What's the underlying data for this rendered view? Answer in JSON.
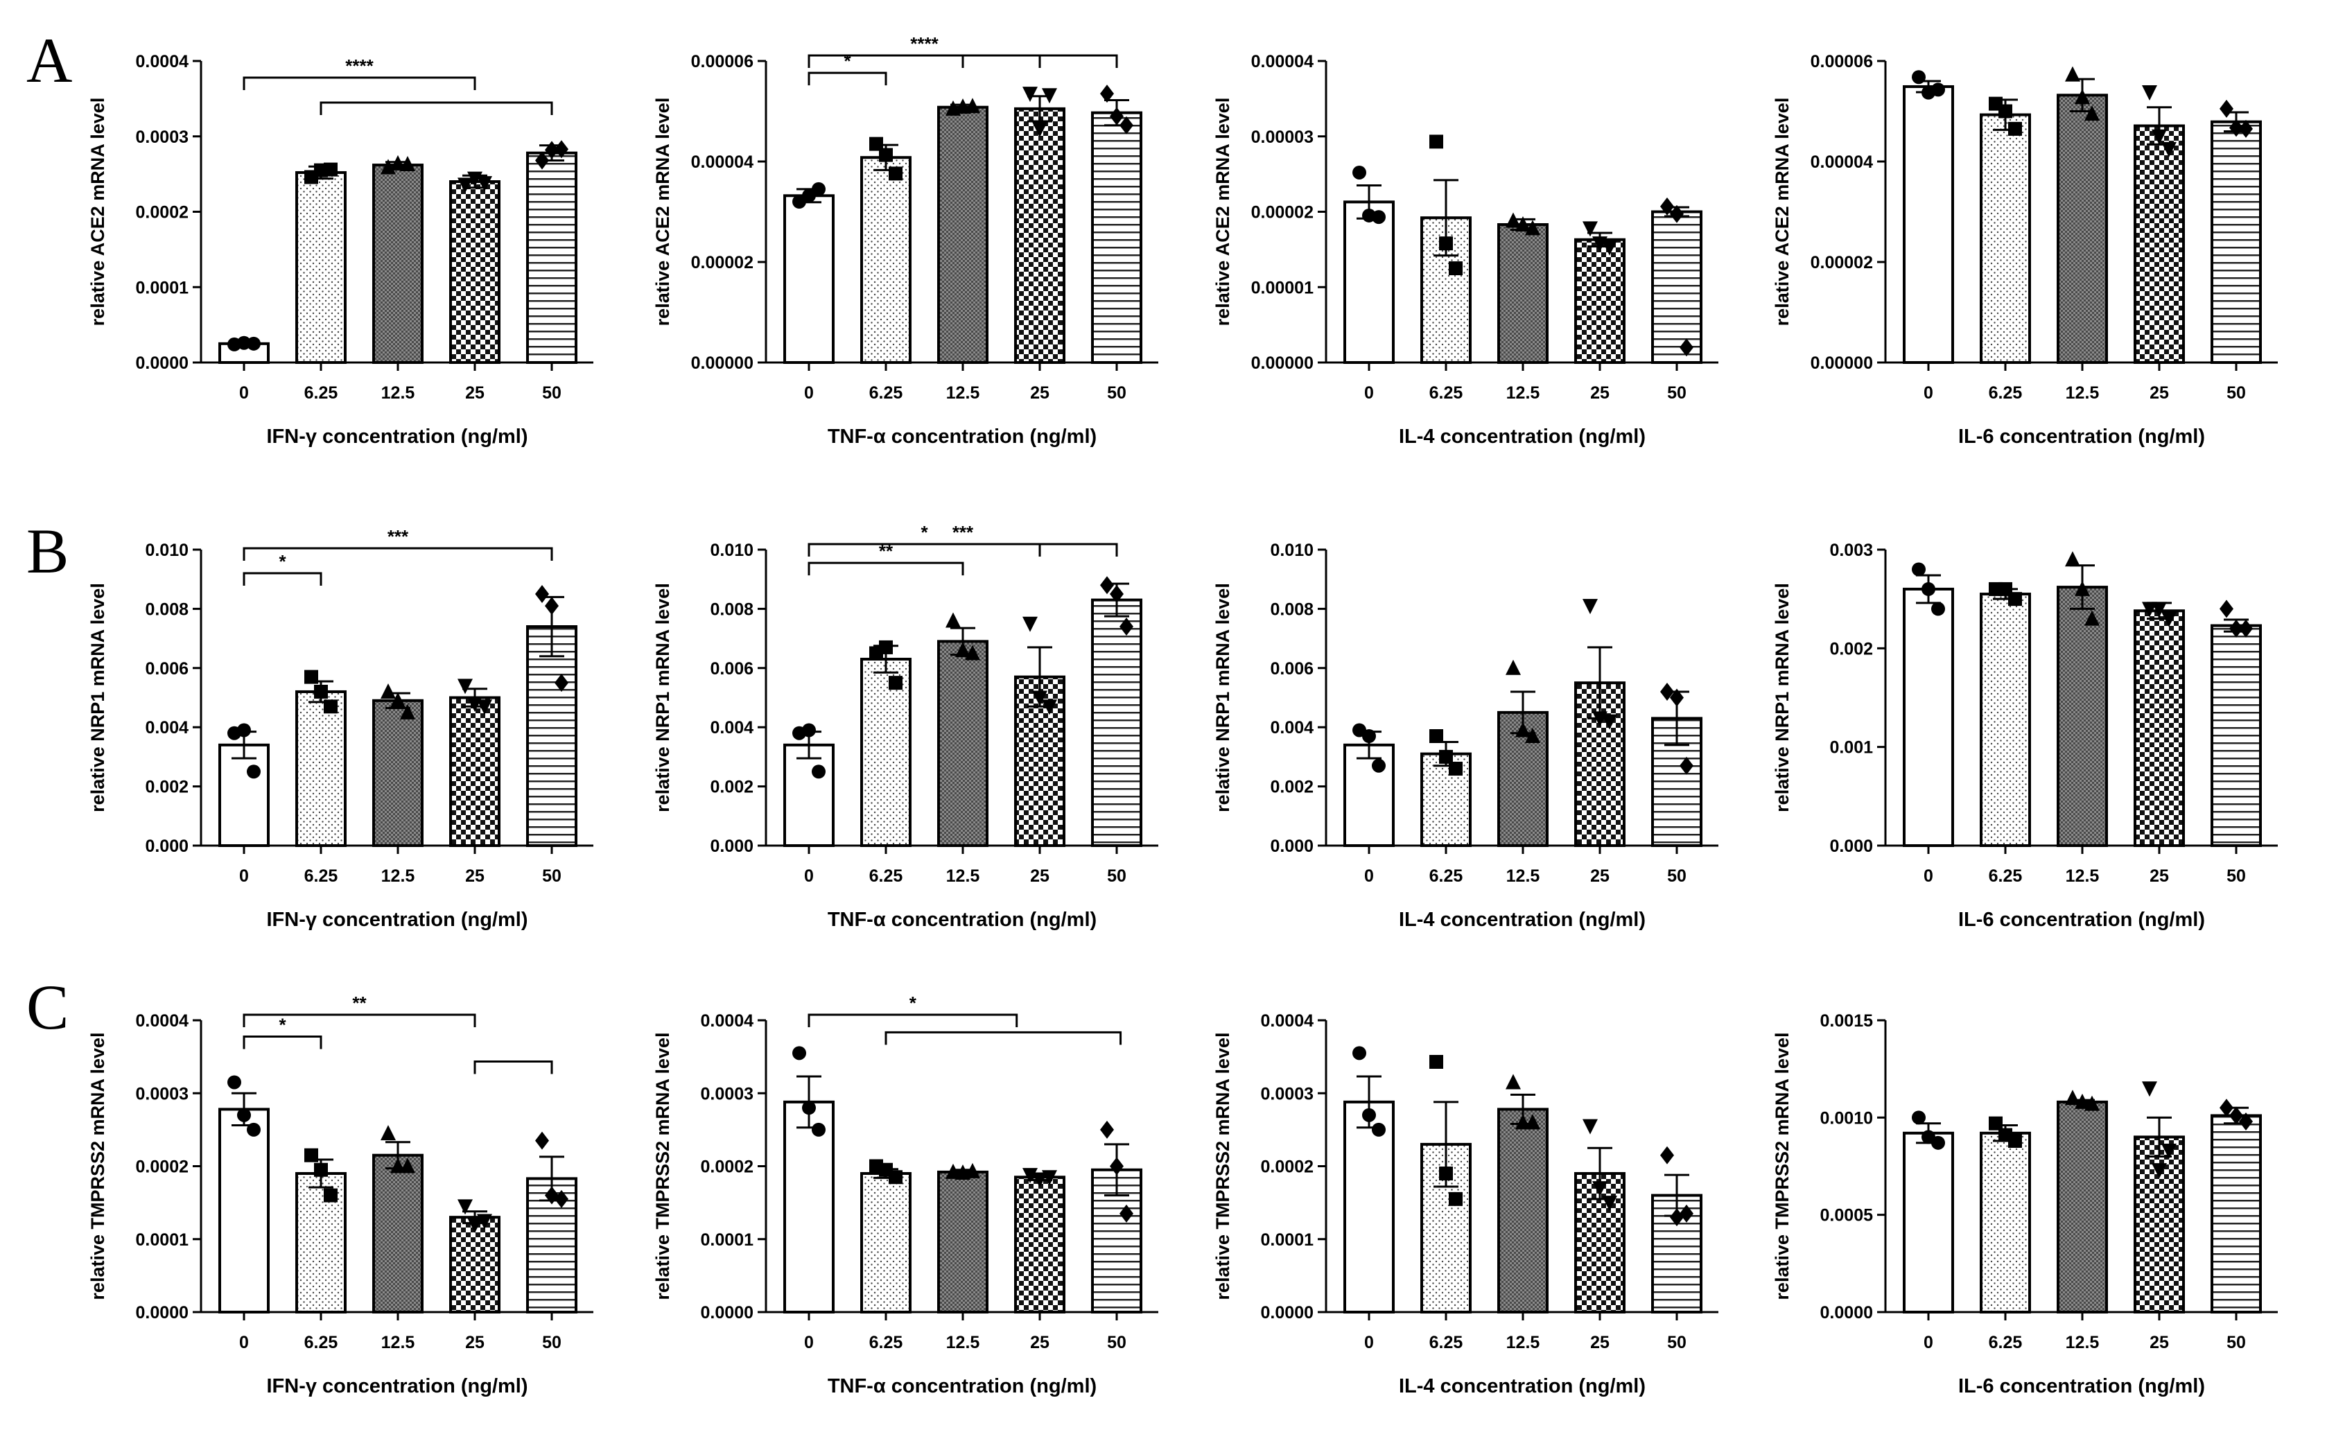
{
  "panel_labels": [
    "A",
    "B",
    "C"
  ],
  "categories": [
    "0",
    "6.25",
    "12.5",
    "25",
    "50"
  ],
  "chart_data": [
    {
      "type": "bar",
      "row": 0,
      "col": 0,
      "ylabel": "relative ACE2 mRNA level",
      "xlabel": "IFN-γ concentration (ng/ml)",
      "ylim": [
        0,
        0.0004
      ],
      "yticks": [
        "0.0000",
        "0.0001",
        "0.0002",
        "0.0003",
        "0.0004"
      ],
      "values": [
        2.5e-05,
        0.000252,
        0.000262,
        0.00024,
        0.000278
      ],
      "errors": [
        2e-06,
        8e-06,
        4e-06,
        8e-06,
        1e-05
      ],
      "points": [
        [
          2.4e-05,
          2.5e-05,
          2.6e-05
        ],
        [
          0.000246,
          0.000256,
          0.000255
        ],
        [
          0.000259,
          0.000263,
          0.000264
        ],
        [
          0.000236,
          0.000238,
          0.000244
        ],
        [
          0.000268,
          0.000283,
          0.000282
        ]
      ],
      "significance": [
        {
          "pair": [
            0,
            3
          ],
          "label": "****"
        },
        {
          "pair": [
            1,
            4
          ],
          "label": ""
        }
      ]
    },
    {
      "type": "bar",
      "row": 0,
      "col": 1,
      "ylabel": "relative ACE2 mRNA level",
      "xlabel": "TNF-α concentration (ng/ml)",
      "ylim": [
        0,
        6e-05
      ],
      "yticks": [
        "0.00000",
        "0.00002",
        "0.00004",
        "0.00006"
      ],
      "values": [
        3.32e-05,
        4.08e-05,
        5.08e-05,
        5.05e-05,
        4.97e-05
      ],
      "errors": [
        1.3e-06,
        2.5e-06,
        5e-07,
        2.5e-06,
        2.5e-06
      ],
      "points": [
        [
          3.2e-05,
          3.45e-05,
          3.32e-05
        ],
        [
          4.35e-05,
          3.76e-05,
          4.13e-05
        ],
        [
          5.05e-05,
          5.1e-05,
          5.09e-05
        ],
        [
          5.35e-05,
          5.32e-05,
          4.65e-05
        ],
        [
          5.35e-05,
          4.72e-05,
          4.9e-05
        ]
      ],
      "significance": [
        {
          "pair": [
            0,
            3
          ],
          "label": "****"
        },
        {
          "pair": [
            2,
            4
          ],
          "label": ""
        },
        {
          "pair": [
            0,
            1
          ],
          "label": "*"
        }
      ]
    },
    {
      "type": "bar",
      "row": 0,
      "col": 2,
      "ylabel": "relative ACE2 mRNA level",
      "xlabel": "IL-4 concentration (ng/ml)",
      "ylim": [
        0,
        4e-05
      ],
      "yticks": [
        "0.00000",
        "0.00001",
        "0.00002",
        "0.00003",
        "0.00004"
      ],
      "values": [
        2.13e-05,
        1.92e-05,
        1.83e-05,
        1.63e-05,
        2e-05
      ],
      "errors": [
        2.2e-06,
        5e-06,
        7e-07,
        9e-07,
        6e-07
      ],
      "points": [
        [
          2.52e-05,
          1.93e-05,
          1.95e-05
        ],
        [
          2.93e-05,
          1.25e-05,
          1.58e-05
        ],
        [
          1.88e-05,
          1.78e-05,
          1.83e-05
        ],
        [
          1.78e-05,
          1.53e-05,
          1.58e-05
        ],
        [
          2.07e-05,
          2e-06,
          1.97e-05
        ]
      ],
      "significance": []
    },
    {
      "type": "bar",
      "row": 0,
      "col": 3,
      "ylabel": "relative ACE2 mRNA level",
      "xlabel": "IL-6 concentration (ng/ml)",
      "ylim": [
        0,
        6e-05
      ],
      "yticks": [
        "0.00000",
        "0.00002",
        "0.00004",
        "0.00006"
      ],
      "values": [
        5.49e-05,
        4.93e-05,
        5.32e-05,
        4.71e-05,
        4.79e-05
      ],
      "errors": [
        1.1e-06,
        3e-06,
        3.2e-06,
        3.7e-06,
        1.9e-06
      ],
      "points": [
        [
          5.68e-05,
          5.43e-05,
          5.37e-05
        ],
        [
          5.15e-05,
          4.65e-05,
          5e-05
        ],
        [
          5.73e-05,
          4.95e-05,
          5.28e-05
        ],
        [
          5.38e-05,
          4.25e-05,
          4.5e-05
        ],
        [
          5.05e-05,
          4.65e-05,
          4.67e-05
        ]
      ],
      "significance": []
    },
    {
      "type": "bar",
      "row": 1,
      "col": 0,
      "ylabel": "relative NRP1 mRNA level",
      "xlabel": "IFN-γ concentration (ng/ml)",
      "ylim": [
        0,
        0.01
      ],
      "yticks": [
        "0.000",
        "0.002",
        "0.004",
        "0.006",
        "0.008",
        "0.010"
      ],
      "values": [
        0.0034,
        0.0052,
        0.0049,
        0.005,
        0.0074
      ],
      "errors": [
        0.00045,
        0.00035,
        0.00025,
        0.0003,
        0.001
      ],
      "points": [
        [
          0.0038,
          0.0025,
          0.0039
        ],
        [
          0.0057,
          0.0047,
          0.0052
        ],
        [
          0.0052,
          0.0045,
          0.0049
        ],
        [
          0.0054,
          0.0047,
          0.0048
        ],
        [
          0.0085,
          0.0055,
          0.0081
        ]
      ],
      "significance": [
        {
          "pair": [
            0,
            4
          ],
          "label": "***"
        },
        {
          "pair": [
            0,
            1
          ],
          "label": "*"
        }
      ]
    },
    {
      "type": "bar",
      "row": 1,
      "col": 1,
      "ylabel": "relative NRP1 mRNA level",
      "xlabel": "TNF-α concentration (ng/ml)",
      "ylim": [
        0,
        0.01
      ],
      "yticks": [
        "0.000",
        "0.002",
        "0.004",
        "0.006",
        "0.008",
        "0.010"
      ],
      "values": [
        0.0034,
        0.0063,
        0.0069,
        0.0057,
        0.0083
      ],
      "errors": [
        0.00045,
        0.00045,
        0.00045,
        0.001,
        0.00055
      ],
      "points": [
        [
          0.0038,
          0.0025,
          0.0039
        ],
        [
          0.0065,
          0.0055,
          0.0067
        ],
        [
          0.0076,
          0.0065,
          0.0066
        ],
        [
          0.0075,
          0.0047,
          0.005
        ],
        [
          0.0088,
          0.0074,
          0.0085
        ]
      ],
      "significance": [
        {
          "pair": [
            0,
            4
          ],
          "label": "***"
        },
        {
          "pair": [
            0,
            3
          ],
          "label": "*"
        },
        {
          "pair": [
            0,
            2
          ],
          "label": "**"
        }
      ]
    },
    {
      "type": "bar",
      "row": 1,
      "col": 2,
      "ylabel": "relative NRP1 mRNA level",
      "xlabel": "IL-4 concentration (ng/ml)",
      "ylim": [
        0,
        0.01
      ],
      "yticks": [
        "0.000",
        "0.002",
        "0.004",
        "0.006",
        "0.008",
        "0.010"
      ],
      "values": [
        0.0034,
        0.0031,
        0.0045,
        0.0055,
        0.0043
      ],
      "errors": [
        0.00045,
        0.0004,
        0.0007,
        0.0012,
        0.0009
      ],
      "points": [
        [
          0.0039,
          0.0027,
          0.0037
        ],
        [
          0.0037,
          0.0026,
          0.003
        ],
        [
          0.006,
          0.0037,
          0.0039
        ],
        [
          0.0081,
          0.0042,
          0.0043
        ],
        [
          0.0052,
          0.0027,
          0.005
        ]
      ],
      "significance": []
    },
    {
      "type": "bar",
      "row": 1,
      "col": 3,
      "ylabel": "relative NRP1 mRNA level",
      "xlabel": "IL-6 concentration (ng/ml)",
      "ylim": [
        0,
        0.003
      ],
      "yticks": [
        "0.000",
        "0.001",
        "0.002",
        "0.003"
      ],
      "values": [
        0.0026,
        0.00255,
        0.00262,
        0.00238,
        0.00223
      ],
      "errors": [
        0.00014,
        5e-05,
        0.00022,
        8e-05,
        6e-05
      ],
      "points": [
        [
          0.0028,
          0.0024,
          0.0026
        ],
        [
          0.0026,
          0.0025,
          0.0026
        ],
        [
          0.0029,
          0.0023,
          0.0026
        ],
        [
          0.0024,
          0.0023,
          0.0024
        ],
        [
          0.0024,
          0.0022,
          0.0022
        ]
      ],
      "significance": []
    },
    {
      "type": "bar",
      "row": 2,
      "col": 0,
      "ylabel": "relative TMPRSS2 mRNA level",
      "xlabel": "IFN-γ concentration (ng/ml)",
      "ylim": [
        0,
        0.0004
      ],
      "yticks": [
        "0.0000",
        "0.0001",
        "0.0002",
        "0.0003",
        "0.0004"
      ],
      "values": [
        0.000278,
        0.00019,
        0.000215,
        0.00013,
        0.000183
      ],
      "errors": [
        2.2e-05,
        1.9e-05,
        1.8e-05,
        8e-06,
        3e-05
      ],
      "points": [
        [
          0.000315,
          0.00025,
          0.00027
        ],
        [
          0.000215,
          0.00016,
          0.000195
        ],
        [
          0.000245,
          0.0002,
          0.0002
        ],
        [
          0.000145,
          0.000125,
          0.00012
        ],
        [
          0.000235,
          0.000155,
          0.00016
        ]
      ],
      "significance": [
        {
          "pair": [
            0,
            3
          ],
          "label": "**"
        },
        {
          "pair": [
            0,
            1
          ],
          "label": "*"
        },
        {
          "pair": [
            3,
            4
          ],
          "label": ""
        }
      ]
    },
    {
      "type": "bar",
      "row": 2,
      "col": 1,
      "ylabel": "relative TMPRSS2 mRNA level",
      "xlabel": "TNF-α concentration (ng/ml)",
      "ylim": [
        0,
        0.0004
      ],
      "yticks": [
        "0.0000",
        "0.0001",
        "0.0002",
        "0.0003",
        "0.0004"
      ],
      "values": [
        0.000288,
        0.00019,
        0.000192,
        0.000185,
        0.000195
      ],
      "errors": [
        3.5e-05,
        6e-06,
        3e-06,
        4e-06,
        3.5e-05
      ],
      "points": [
        [
          0.000355,
          0.00025,
          0.00028
        ],
        [
          0.0002,
          0.000185,
          0.000195
        ],
        [
          0.000192,
          0.000193,
          0.000191
        ],
        [
          0.000188,
          0.000185,
          0.000182
        ],
        [
          0.00025,
          0.000135,
          0.0002
        ]
      ],
      "significance": [
        {
          "pair": [
            0,
            2.7
          ],
          "label": "*"
        },
        {
          "pair": [
            1,
            4.05
          ],
          "label": ""
        }
      ]
    },
    {
      "type": "bar",
      "row": 2,
      "col": 2,
      "ylabel": "relative TMPRSS2 mRNA level",
      "xlabel": "IL-4 concentration (ng/ml)",
      "ylim": [
        0,
        0.0004
      ],
      "yticks": [
        "0.0000",
        "0.0001",
        "0.0002",
        "0.0003",
        "0.0004"
      ],
      "values": [
        0.000288,
        0.00023,
        0.000278,
        0.00019,
        0.00016
      ],
      "errors": [
        3.5e-05,
        5.8e-05,
        2e-05,
        3.5e-05,
        2.8e-05
      ],
      "points": [
        [
          0.000355,
          0.00025,
          0.00027
        ],
        [
          0.000343,
          0.000155,
          0.00019
        ],
        [
          0.000315,
          0.00026,
          0.00026
        ],
        [
          0.000255,
          0.00015,
          0.00017
        ],
        [
          0.000215,
          0.000135,
          0.00013
        ]
      ],
      "significance": []
    },
    {
      "type": "bar",
      "row": 2,
      "col": 3,
      "ylabel": "relative TMPRSS2 mRNA level",
      "xlabel": "IL-6 concentration (ng/ml)",
      "ylim": [
        0,
        0.0015
      ],
      "yticks": [
        "0.0000",
        "0.0005",
        "0.0010",
        "0.0015"
      ],
      "values": [
        0.00092,
        0.00092,
        0.00108,
        0.0009,
        0.00101
      ],
      "errors": [
        5e-05,
        4e-05,
        1e-05,
        0.0001,
        4e-05
      ],
      "points": [
        [
          0.001,
          0.00087,
          0.0009
        ],
        [
          0.00097,
          0.00088,
          0.00091
        ],
        [
          0.0011,
          0.00107,
          0.00108
        ],
        [
          0.00115,
          0.00083,
          0.00073
        ],
        [
          0.00105,
          0.00098,
          0.00101
        ]
      ],
      "significance": []
    }
  ]
}
